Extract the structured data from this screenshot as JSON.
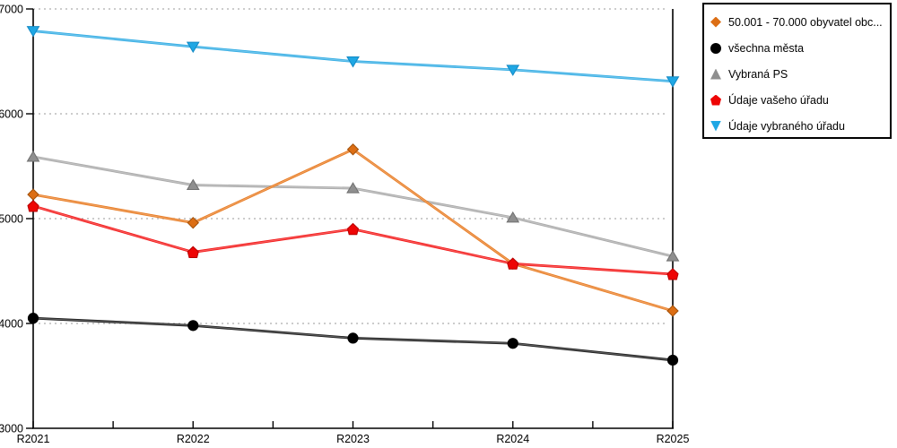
{
  "chart_data": {
    "type": "line",
    "title": "",
    "xlabel": "",
    "ylabel": "",
    "categories": [
      "R2021",
      "R2022",
      "R2023",
      "R2024",
      "R2025"
    ],
    "series": [
      {
        "name": "50.001 - 70.000 obyvatel obc...",
        "marker": "diamond",
        "color": "#E8791E",
        "marker_fill": "#DC6E14",
        "marker_edge": "#A04F08",
        "values": [
          5230,
          4960,
          5660,
          4570,
          4120
        ]
      },
      {
        "name": "všechna města",
        "marker": "circle",
        "color": "#1A1A1A",
        "marker_fill": "#000000",
        "marker_edge": "#000000",
        "values": [
          4050,
          3980,
          3860,
          3810,
          3650
        ]
      },
      {
        "name": "Vybraná PS",
        "marker": "triangle-up",
        "color": "#A8A8A8",
        "marker_fill": "#8F8F8F",
        "marker_edge": "#6F6F6F",
        "values": [
          5590,
          5320,
          5290,
          5010,
          4640
        ]
      },
      {
        "name": "Údaje vašeho úřadu",
        "marker": "pentagon",
        "color": "#F31515",
        "marker_fill": "#EE0505",
        "marker_edge": "#B50000",
        "values": [
          5120,
          4680,
          4900,
          4570,
          4470
        ]
      },
      {
        "name": "Údaje vybraného úřadu",
        "marker": "triangle-down",
        "color": "#31ACE4",
        "marker_fill": "#1FA7E4",
        "marker_edge": "#1489C4",
        "values": [
          6790,
          6640,
          6500,
          6420,
          6310
        ]
      }
    ],
    "draw_order": [
      2,
      1,
      0,
      3,
      4
    ],
    "ylim": [
      3000,
      7000
    ],
    "ytick_step": 1000,
    "yticks": [
      "3000",
      "4000",
      "5000",
      "6000",
      "7000"
    ],
    "grid": "horizontal-dotted",
    "grid_color": "#BBBBBB",
    "axis_color": "#000000",
    "legend_position": "top-right"
  }
}
